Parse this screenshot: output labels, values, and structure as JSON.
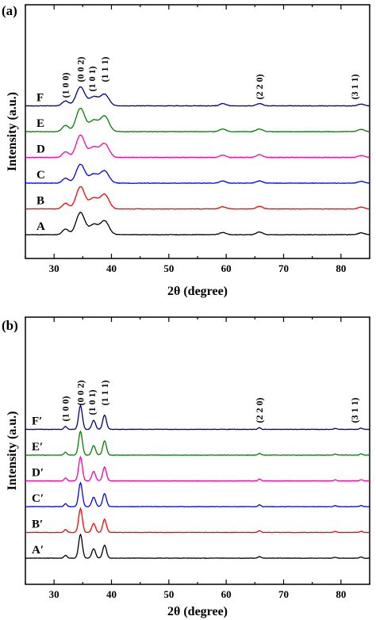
{
  "chart_data": [
    {
      "type": "line",
      "panel": "(a)",
      "xlabel": "2θ (degree)",
      "ylabel": "Intensity (a.u.)",
      "xlim": [
        25,
        85
      ],
      "xticks": [
        30,
        40,
        50,
        60,
        70,
        80
      ],
      "peak_labels": [
        {
          "text": "(1 0 0)",
          "x": 32.0
        },
        {
          "text": "(0 0 2)",
          "x": 34.6
        },
        {
          "text": "(1 0 1)",
          "x": 36.6
        },
        {
          "text": "(1 1 1)",
          "x": 38.8
        },
        {
          "text": "(2 2 0)",
          "x": 65.8
        },
        {
          "text": "(3 1 1)",
          "x": 82.4
        }
      ],
      "series": [
        {
          "name": "A",
          "color": "#000000",
          "peaks": [
            [
              32.0,
              0.25
            ],
            [
              34.6,
              1.0
            ],
            [
              36.9,
              0.45
            ],
            [
              38.8,
              0.62
            ],
            [
              59.4,
              0.1
            ],
            [
              65.8,
              0.12
            ],
            [
              83.5,
              0.08
            ]
          ]
        },
        {
          "name": "B",
          "color": "#ff0000",
          "peaks": [
            [
              32.0,
              0.25
            ],
            [
              34.6,
              1.0
            ],
            [
              36.9,
              0.48
            ],
            [
              38.8,
              0.65
            ],
            [
              59.4,
              0.1
            ],
            [
              65.8,
              0.12
            ],
            [
              83.5,
              0.08
            ]
          ]
        },
        {
          "name": "C",
          "color": "#0000ff",
          "peaks": [
            [
              32.0,
              0.22
            ],
            [
              34.6,
              0.85
            ],
            [
              36.9,
              0.4
            ],
            [
              38.8,
              0.55
            ],
            [
              59.4,
              0.1
            ],
            [
              65.8,
              0.1
            ],
            [
              83.5,
              0.08
            ]
          ]
        },
        {
          "name": "D",
          "color": "#ff00aa",
          "peaks": [
            [
              32.0,
              0.25
            ],
            [
              34.6,
              1.0
            ],
            [
              36.9,
              0.46
            ],
            [
              38.8,
              0.62
            ],
            [
              59.4,
              0.1
            ],
            [
              65.8,
              0.12
            ],
            [
              83.5,
              0.08
            ]
          ]
        },
        {
          "name": "E",
          "color": "#008000",
          "peaks": [
            [
              32.0,
              0.28
            ],
            [
              34.6,
              1.05
            ],
            [
              36.9,
              0.5
            ],
            [
              38.8,
              0.7
            ],
            [
              59.4,
              0.12
            ],
            [
              65.8,
              0.12
            ],
            [
              83.5,
              0.1
            ]
          ]
        },
        {
          "name": "F",
          "color": "#000080",
          "peaks": [
            [
              32.0,
              0.22
            ],
            [
              34.6,
              0.85
            ],
            [
              36.9,
              0.4
            ],
            [
              38.8,
              0.52
            ],
            [
              59.4,
              0.1
            ],
            [
              65.8,
              0.1
            ],
            [
              83.5,
              0.08
            ]
          ]
        }
      ]
    },
    {
      "type": "line",
      "panel": "(b)",
      "xlabel": "2θ (degree)",
      "ylabel": "Intensity (a.u.)",
      "xlim": [
        25,
        85
      ],
      "xticks": [
        30,
        40,
        50,
        60,
        70,
        80
      ],
      "peak_labels": [
        {
          "text": "(1 0 0)",
          "x": 32.0
        },
        {
          "text": "(0 0 2)",
          "x": 34.6
        },
        {
          "text": "(1 0 1)",
          "x": 36.6
        },
        {
          "text": "(1 1 1)",
          "x": 38.8
        },
        {
          "text": "(2 2 0)",
          "x": 65.8
        },
        {
          "text": "(3 1 1)",
          "x": 82.4
        }
      ],
      "series": [
        {
          "name": "A′",
          "color": "#000000",
          "peaks": [
            [
              32.0,
              0.12
            ],
            [
              34.6,
              1.0
            ],
            [
              36.9,
              0.4
            ],
            [
              38.8,
              0.55
            ],
            [
              65.8,
              0.07
            ],
            [
              79.0,
              0.04
            ],
            [
              83.5,
              0.05
            ]
          ]
        },
        {
          "name": "B′",
          "color": "#ff0000",
          "peaks": [
            [
              32.0,
              0.12
            ],
            [
              34.6,
              1.0
            ],
            [
              36.9,
              0.38
            ],
            [
              38.8,
              0.55
            ],
            [
              65.8,
              0.07
            ],
            [
              79.0,
              0.04
            ],
            [
              83.5,
              0.05
            ]
          ]
        },
        {
          "name": "C′",
          "color": "#0000ff",
          "peaks": [
            [
              32.0,
              0.12
            ],
            [
              34.6,
              1.0
            ],
            [
              36.9,
              0.4
            ],
            [
              38.8,
              0.55
            ],
            [
              65.8,
              0.07
            ],
            [
              79.0,
              0.04
            ],
            [
              83.5,
              0.05
            ]
          ]
        },
        {
          "name": "D′",
          "color": "#ff00aa",
          "peaks": [
            [
              32.0,
              0.12
            ],
            [
              34.6,
              1.0
            ],
            [
              36.9,
              0.4
            ],
            [
              38.8,
              0.58
            ],
            [
              65.8,
              0.07
            ],
            [
              79.0,
              0.04
            ],
            [
              83.5,
              0.05
            ]
          ]
        },
        {
          "name": "E′",
          "color": "#008000",
          "peaks": [
            [
              32.0,
              0.12
            ],
            [
              34.6,
              1.0
            ],
            [
              36.9,
              0.4
            ],
            [
              38.8,
              0.6
            ],
            [
              65.8,
              0.07
            ],
            [
              79.0,
              0.04
            ],
            [
              83.5,
              0.05
            ]
          ]
        },
        {
          "name": "F′",
          "color": "#000080",
          "peaks": [
            [
              32.0,
              0.12
            ],
            [
              34.6,
              1.0
            ],
            [
              36.9,
              0.38
            ],
            [
              38.8,
              0.6
            ],
            [
              65.8,
              0.07
            ],
            [
              79.0,
              0.04
            ],
            [
              83.5,
              0.05
            ]
          ]
        }
      ]
    }
  ]
}
